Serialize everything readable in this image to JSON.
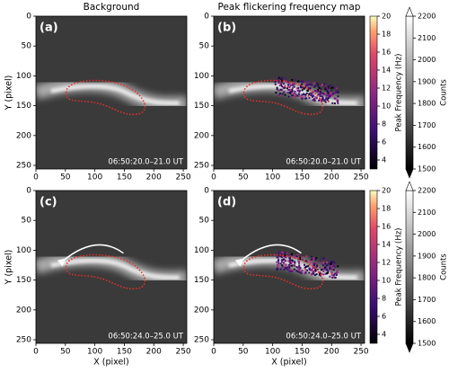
{
  "chart_data": [
    {
      "type": "image",
      "title": "Background",
      "panel_label": "(a)",
      "time_label": "06:50:20.0–21.0 UT",
      "ylabel": "Y (pixel)",
      "xlim": [
        0,
        256
      ],
      "xticks": [
        0,
        50,
        100,
        150,
        200,
        250
      ],
      "ylim": [
        256,
        0
      ],
      "yticks": [
        0,
        50,
        100,
        150,
        200,
        250
      ]
    },
    {
      "type": "image",
      "title": "Peak flickering frequency map",
      "panel_label": "(b)",
      "time_label": "06:50:20.0–21.0 UT",
      "xlim": [
        0,
        256
      ],
      "xticks": [
        0,
        50,
        100,
        150,
        200,
        250
      ],
      "ylim": [
        256,
        0
      ],
      "yticks": [
        0,
        50,
        100,
        150,
        200,
        250
      ],
      "colorbars": [
        {
          "label": "Peak Frequency (Hz)",
          "lim": [
            3,
            20
          ],
          "ticks": [
            4,
            6,
            8,
            10,
            12,
            14,
            16,
            18,
            20
          ],
          "colormap": "magma"
        },
        {
          "label": "Counts",
          "lim": [
            1500,
            2200
          ],
          "ticks": [
            1500,
            1600,
            1700,
            1800,
            1900,
            2000,
            2100,
            2200
          ],
          "colormap": "gray",
          "extend": "both"
        }
      ]
    },
    {
      "type": "image",
      "panel_label": "(c)",
      "time_label": "06:50:24.0–25.0 UT",
      "ylabel": "Y (pixel)",
      "xlabel": "X (pixel)",
      "arrow": true,
      "xlim": [
        0,
        256
      ],
      "xticks": [
        0,
        50,
        100,
        150,
        200,
        250
      ],
      "ylim": [
        256,
        0
      ],
      "yticks": [
        0,
        50,
        100,
        150,
        200,
        250
      ]
    },
    {
      "type": "image",
      "panel_label": "(d)",
      "time_label": "06:50:24.0–25.0 UT",
      "xlabel": "X (pixel)",
      "arrow": true,
      "xlim": [
        0,
        256
      ],
      "xticks": [
        0,
        50,
        100,
        150,
        200,
        250
      ],
      "ylim": [
        256,
        0
      ],
      "yticks": [
        0,
        50,
        100,
        150,
        200,
        250
      ],
      "colorbars": [
        {
          "label": "Peak Frequency (Hz)",
          "lim": [
            3,
            20
          ],
          "ticks": [
            4,
            6,
            8,
            10,
            12,
            14,
            16,
            18,
            20
          ],
          "colormap": "magma"
        },
        {
          "label": "Counts",
          "lim": [
            1500,
            2200
          ],
          "ticks": [
            1500,
            1600,
            1700,
            1800,
            1900,
            2000,
            2100,
            2200
          ],
          "colormap": "gray",
          "extend": "both"
        }
      ]
    }
  ]
}
